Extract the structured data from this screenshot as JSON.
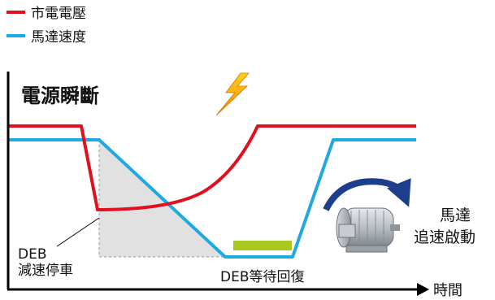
{
  "legend": {
    "grid_voltage": "市電電壓",
    "motor_speed": "馬達速度"
  },
  "title": "電源瞬斷",
  "labels": {
    "deb_line1": "DEB",
    "deb_line2": "減速停車",
    "deb_wait": "DEB等待回復",
    "restart_line1": "馬達",
    "restart_line2": "追速啟動",
    "time_axis": "時間"
  },
  "icons": {
    "lightning": "lightning-bolt-icon",
    "motor": "electric-motor-icon",
    "rotation": "rotation-arrow-icon"
  },
  "colors": {
    "voltage": "#e0101f",
    "speed": "#1ea9e1",
    "deceleration_area": "#e1e1e1",
    "wait_bar": "#a8c81f",
    "lightning": "#f6a800",
    "rotation_arrow": "#1c3e8c"
  }
}
